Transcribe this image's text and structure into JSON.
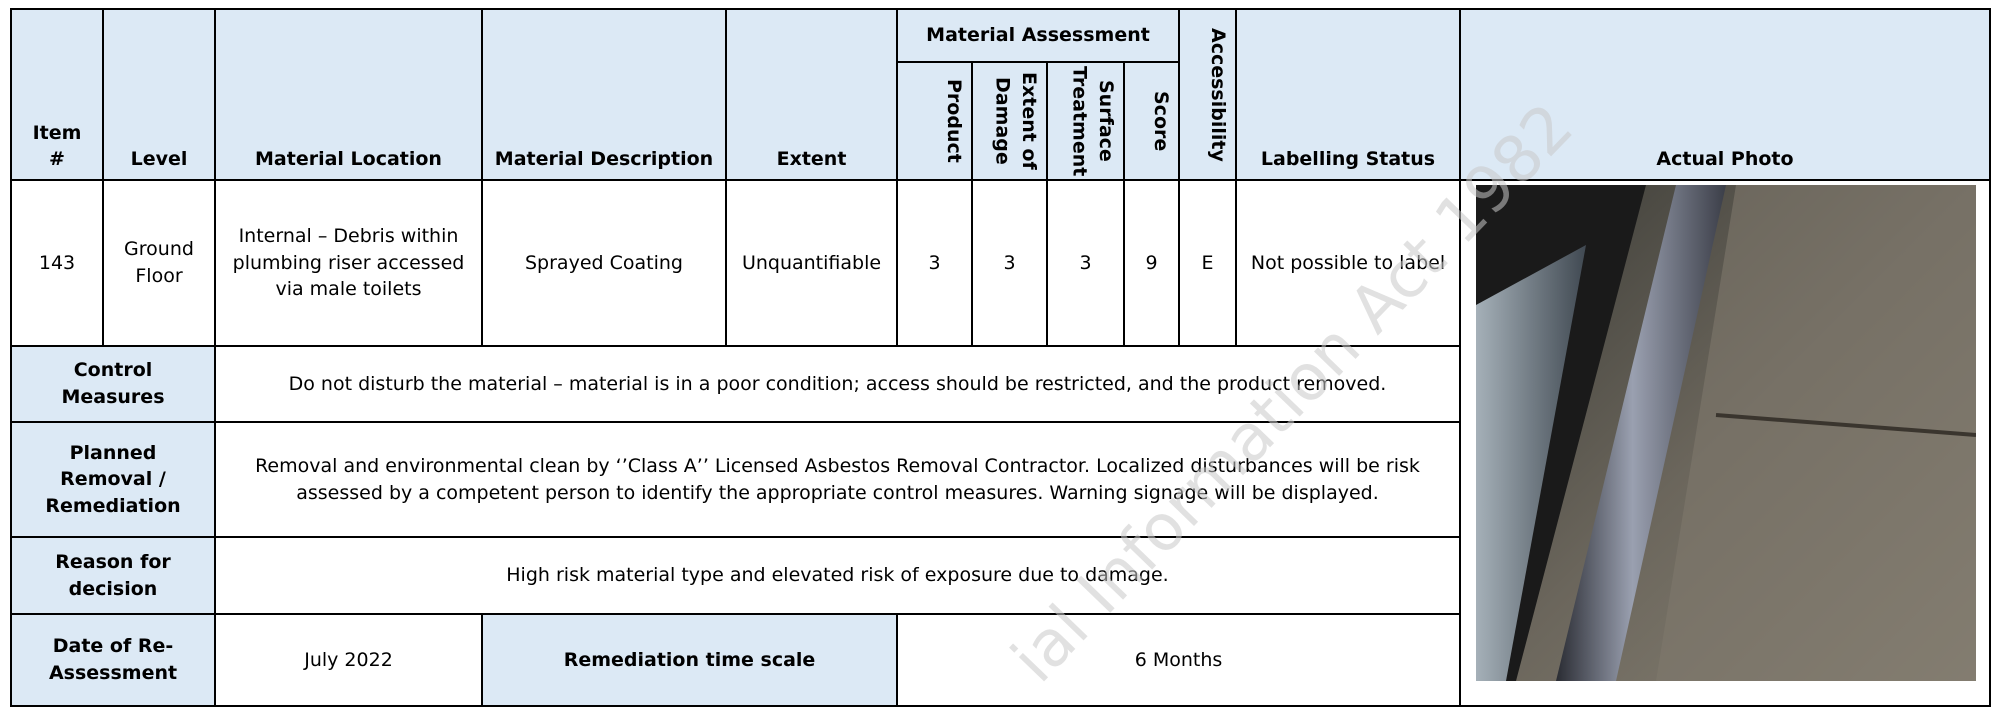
{
  "headers": {
    "item": "Item #",
    "level": "Level",
    "material_location": "Material Location",
    "material_description": "Material Description",
    "extent": "Extent",
    "material_assessment": "Material Assessment",
    "product": "Product",
    "extent_of_damage": "Extent of Damage",
    "surface_treatment": "Surface Treatment",
    "score": "Score",
    "accessibility": "Accessibility",
    "labelling_status": "Labelling Status",
    "actual_photo": "Actual Photo"
  },
  "row": {
    "item": 143,
    "level": "Ground Floor",
    "material_location": "Internal – Debris within plumbing riser accessed via male toilets",
    "material_description": "Sprayed Coating",
    "extent": "Unquantifiable",
    "product": 3,
    "extent_of_damage": 3,
    "surface_treatment": 3,
    "score": 9,
    "accessibility": "E",
    "labelling_status": "Not possible to label"
  },
  "control_measures": {
    "label": "Control Measures",
    "text": "Do not disturb the material – material is in a poor condition; access should be restricted, and the product removed."
  },
  "planned_removal": {
    "label": "Planned Removal / Remediation",
    "text": "Removal and environmental clean by ‘’Class A’’ Licensed Asbestos Removal Contractor. Localized disturbances will be risk assessed by a competent person to identify the appropriate control measures. Warning signage will be displayed."
  },
  "reason": {
    "label": "Reason for decision",
    "text": "High risk material type and elevated risk of exposure due to damage."
  },
  "reassessment": {
    "label": "Date of Re-Assessment",
    "date": "July 2022",
    "timescale_label": "Remediation time scale",
    "timescale": "6 Months"
  },
  "watermark": "ial Information Act 1982"
}
